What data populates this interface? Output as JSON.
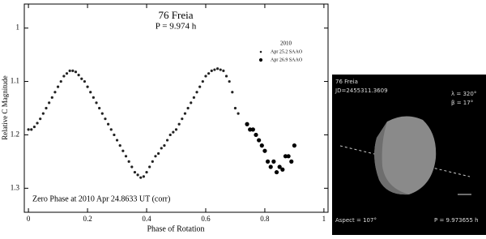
{
  "chart_data": {
    "type": "scatter",
    "title": "76 Freia",
    "subtitle": "P = 9.974 h",
    "xlabel": "Phase of Rotation",
    "ylabel": "Relative C Magnitude",
    "annotation": "Zero Phase at 2010 Apr 24.8633 UT (corr)",
    "legend_title": "2010",
    "legend": "upper right",
    "xlim": [
      -0.014,
      1.014
    ],
    "ylim": [
      0.955,
      1.345
    ],
    "y_inverted": true,
    "xticks": [
      0,
      0.2,
      0.4,
      0.6,
      0.8,
      1
    ],
    "yticks": [
      1,
      1.1,
      1.2,
      1.3
    ],
    "series": [
      {
        "name": "Apr 25.2 SAAO",
        "color": "#222222",
        "size": 1.6,
        "x": [
          0,
          0.01,
          0.02,
          0.03,
          0.04,
          0.05,
          0.06,
          0.07,
          0.08,
          0.09,
          0.1,
          0.11,
          0.12,
          0.13,
          0.14,
          0.15,
          0.16,
          0.17,
          0.18,
          0.19,
          0.2,
          0.21,
          0.22,
          0.23,
          0.24,
          0.25,
          0.26,
          0.27,
          0.28,
          0.29,
          0.3,
          0.31,
          0.32,
          0.33,
          0.34,
          0.35,
          0.36,
          0.37,
          0.38,
          0.39,
          0.4,
          0.41,
          0.42,
          0.43,
          0.44,
          0.45,
          0.46,
          0.47,
          0.48,
          0.49,
          0.5,
          0.51,
          0.52,
          0.53,
          0.54,
          0.55,
          0.56,
          0.57,
          0.58,
          0.59,
          0.6,
          0.61,
          0.62,
          0.63,
          0.64,
          0.65,
          0.66,
          0.67,
          0.68,
          0.69,
          0.7,
          0.71
        ],
        "values": [
          1.19,
          1.19,
          1.185,
          1.178,
          1.17,
          1.16,
          1.15,
          1.14,
          1.13,
          1.12,
          1.11,
          1.1,
          1.09,
          1.085,
          1.08,
          1.08,
          1.082,
          1.088,
          1.095,
          1.1,
          1.11,
          1.12,
          1.13,
          1.14,
          1.15,
          1.16,
          1.17,
          1.18,
          1.19,
          1.2,
          1.21,
          1.22,
          1.23,
          1.24,
          1.25,
          1.26,
          1.27,
          1.275,
          1.28,
          1.278,
          1.27,
          1.26,
          1.25,
          1.24,
          1.235,
          1.225,
          1.22,
          1.21,
          1.2,
          1.195,
          1.19,
          1.18,
          1.17,
          1.16,
          1.15,
          1.14,
          1.13,
          1.12,
          1.11,
          1.1,
          1.09,
          1.085,
          1.08,
          1.078,
          1.076,
          1.078,
          1.08,
          1.09,
          1.1,
          1.12,
          1.15,
          1.16
        ]
      },
      {
        "name": "Apr 26.9 SAAO",
        "color": "#000000",
        "size": 2.6,
        "x": [
          0.74,
          0.75,
          0.76,
          0.77,
          0.78,
          0.79,
          0.8,
          0.81,
          0.82,
          0.83,
          0.84,
          0.85,
          0.86,
          0.87,
          0.88,
          0.89,
          0.9
        ],
        "values": [
          1.18,
          1.19,
          1.19,
          1.2,
          1.21,
          1.22,
          1.23,
          1.25,
          1.26,
          1.25,
          1.27,
          1.26,
          1.265,
          1.24,
          1.24,
          1.25,
          1.22
        ]
      }
    ]
  },
  "shape_model": {
    "name": "76 Freia",
    "jd": "JD=2455311.3609",
    "lambda": "λ = 320°",
    "beta": "β = 17°",
    "aspect": "Aspect = 107°",
    "period": "P = 9.973655 h"
  }
}
